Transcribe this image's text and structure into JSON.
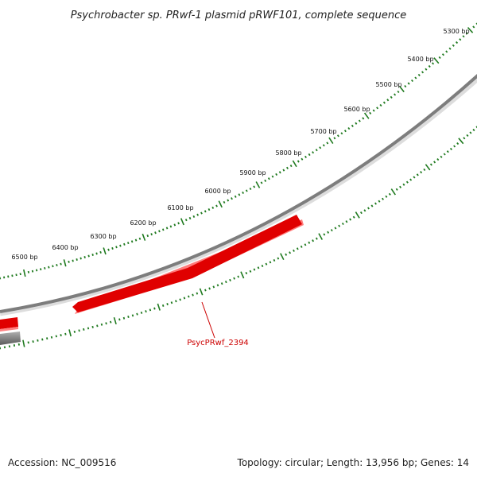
{
  "title": "Psychrobacter sp. PRwf-1 plasmid pRWF101, complete sequence",
  "scale_labels": [
    "5300 bp",
    "5400 bp",
    "5500 bp",
    "5600 bp",
    "5700 bp",
    "5800 bp",
    "5900 bp",
    "6000 bp",
    "6100 bp",
    "6200 bp",
    "6300 bp",
    "6400 bp",
    "6500 bp"
  ],
  "gene": {
    "label": "PsycPRwf_2394",
    "color": "#cc0000"
  },
  "colors": {
    "backbone": "#8a8a8a",
    "gene": "#e00000",
    "tick": "#1f7a1f",
    "label_red": "#cc0000"
  },
  "footer": {
    "accession": "Accession: NC_009516",
    "info": "Topology: circular; Length: 13,956 bp; Genes: 14"
  }
}
